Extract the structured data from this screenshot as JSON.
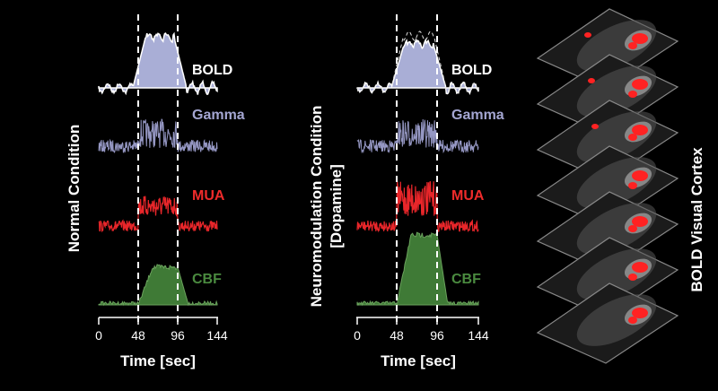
{
  "panels": [
    {
      "ylabel": [
        "Normal Condition"
      ],
      "xlabel": "Time [sec]",
      "ticks": [
        "0",
        "48",
        "96",
        "144"
      ],
      "signals": [
        {
          "name": "BOLD",
          "color": "#ffffff"
        },
        {
          "name": "Gamma",
          "color": "#a4a6d2"
        },
        {
          "name": "MUA",
          "color": "#ee2b2b"
        },
        {
          "name": "CBF",
          "color": "#4a8a3f"
        }
      ]
    },
    {
      "ylabel": [
        "Neuromodulation Condition",
        "[Dopamine]"
      ],
      "xlabel": "Time [sec]",
      "ticks": [
        "0",
        "48",
        "96",
        "144"
      ],
      "signals": [
        {
          "name": "BOLD",
          "color": "#ffffff"
        },
        {
          "name": "Gamma",
          "color": "#a4a6d2"
        },
        {
          "name": "MUA",
          "color": "#ee2b2b"
        },
        {
          "name": "CBF",
          "color": "#4a8a3f"
        }
      ]
    }
  ],
  "stack_label": "BOLD Visual Cortex",
  "slice_count": 7,
  "colors": {
    "background": "#000000",
    "bold_fill": "#a9aed6",
    "gamma": "#9597c3",
    "mua": "#e8262a",
    "cbf": "#3f7a36",
    "activation": "#ff2222"
  }
}
